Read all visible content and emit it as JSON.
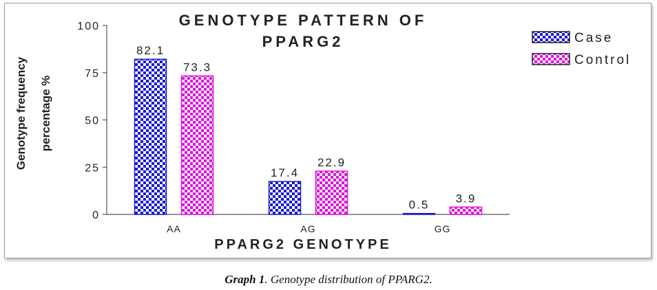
{
  "chart_data": {
    "type": "bar",
    "title": "GENOTYPE PATTERN OF PPARG2",
    "title_lines": [
      "GENOTYPE PATTERN OF",
      "PPARG2"
    ],
    "xlabel": "PPARG2 GENOTYPE",
    "ylabel_lines": [
      "Genotype frequency",
      "percentage %"
    ],
    "categories": [
      "AA",
      "AG",
      "GG"
    ],
    "series": [
      {
        "name": "Case",
        "values": [
          82.1,
          17.4,
          0.5
        ],
        "labels": [
          "82.1",
          "17.4",
          "0.5"
        ],
        "color": "#1a1ad6",
        "pattern": "checker-blue"
      },
      {
        "name": "Control",
        "values": [
          73.3,
          22.9,
          3.9
        ],
        "labels": [
          "73.3",
          "22.9",
          "3.9"
        ],
        "color": "#e010e0",
        "pattern": "checker-magenta"
      }
    ],
    "yticks": [
      "0",
      "25",
      "50",
      "75",
      "100"
    ],
    "ylim": [
      0,
      100
    ],
    "grid": false,
    "legend_position": "top-right"
  },
  "caption": {
    "lead": "Graph 1",
    "text": ". Genotype distribution of PPARG2."
  }
}
